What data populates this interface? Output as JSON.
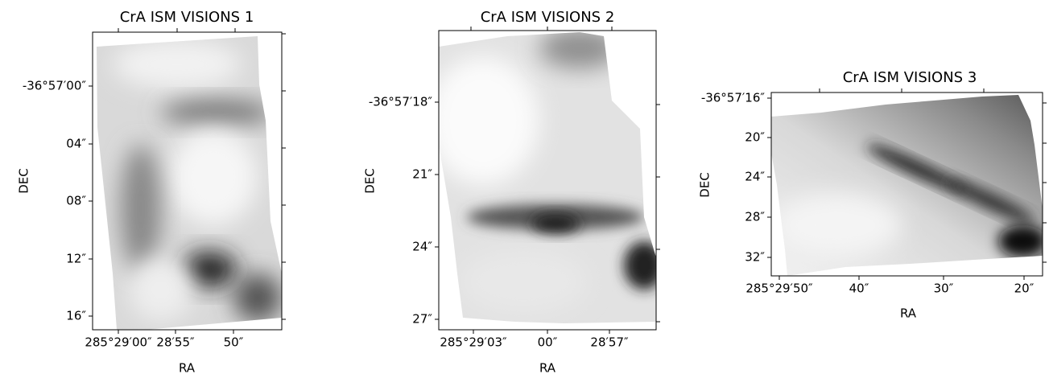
{
  "panels": [
    {
      "title": "CrA ISM VISIONS 1",
      "xlabel": "RA",
      "ylabel": "DEC",
      "xticks": [
        "285°29′00″",
        "28′55″",
        "50″"
      ],
      "yticks": [
        "-36°57′00″",
        "04″",
        "08″",
        "12″",
        "16″"
      ]
    },
    {
      "title": "CrA ISM VISIONS 2",
      "xlabel": "RA",
      "ylabel": "DEC",
      "xticks": [
        "285°29′03″",
        "00″",
        "28′57″"
      ],
      "yticks": [
        "-36°57′18″",
        "21″",
        "24″",
        "27″"
      ]
    },
    {
      "title": "CrA ISM VISIONS 3",
      "xlabel": "RA",
      "ylabel": "DEC",
      "xticks": [
        "285°29′50″",
        "40″",
        "30″",
        "20″"
      ],
      "yticks": [
        "-36°57′16″",
        "20″",
        "24″",
        "28″",
        "32″"
      ]
    }
  ]
}
